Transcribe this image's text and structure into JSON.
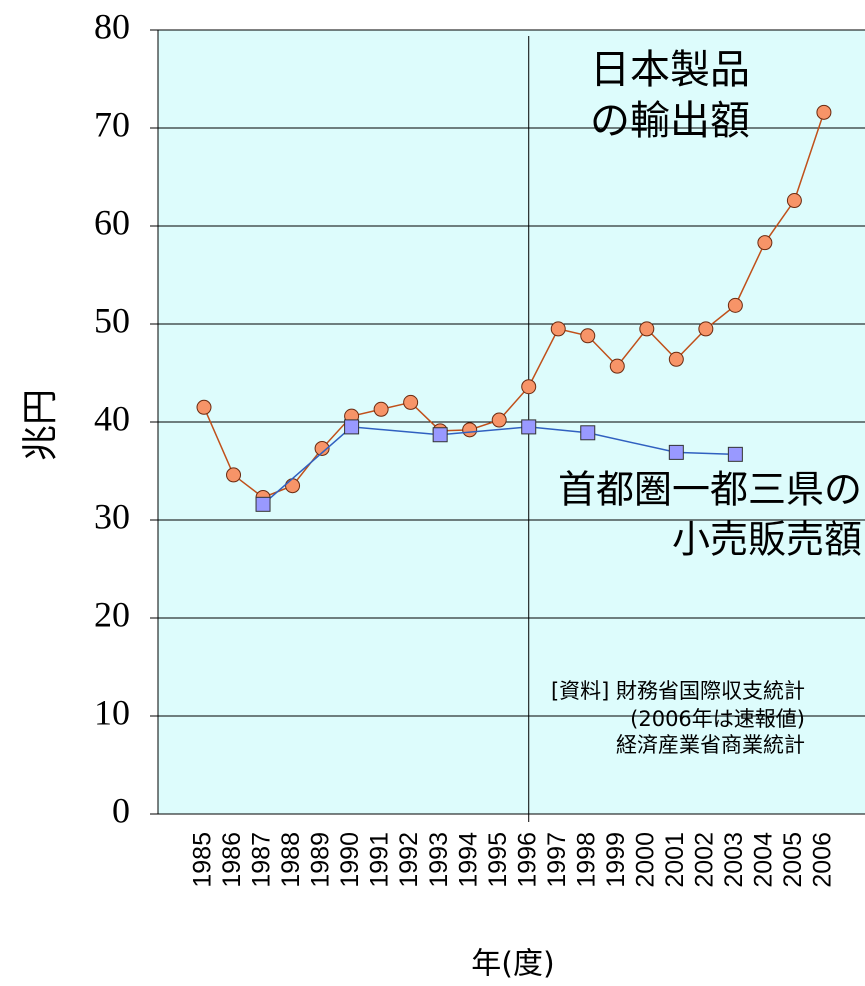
{
  "chart_data": {
    "type": "line",
    "y_label": "兆円",
    "x_label": "年(度)",
    "categories": [
      "1985",
      "1986",
      "1987",
      "1988",
      "1989",
      "1990",
      "1991",
      "1992",
      "1993",
      "1994",
      "1995",
      "1996",
      "1997",
      "1998",
      "1999",
      "2000",
      "2001",
      "2002",
      "2003",
      "2004",
      "2005",
      "2006"
    ],
    "series": [
      {
        "name": "日本製品の輸出額",
        "color": "#c0501a",
        "marker_color": "#f79468",
        "marker": "circle",
        "values": [
          41.5,
          34.6,
          32.3,
          33.5,
          37.3,
          40.6,
          41.3,
          42.0,
          39.1,
          39.2,
          40.2,
          43.6,
          49.5,
          48.8,
          45.7,
          49.5,
          46.4,
          49.5,
          51.9,
          58.3,
          62.6,
          71.6
        ]
      },
      {
        "name": "首都圏一都三県の小売販売額",
        "color": "#3060c0",
        "marker_color": "#9999ff",
        "marker": "square",
        "x": [
          "1987",
          "1990",
          "1993",
          "1996",
          "1998",
          "2001",
          "2003"
        ],
        "values": [
          31.6,
          39.5,
          38.7,
          39.5,
          38.9,
          36.9,
          36.7
        ]
      }
    ],
    "annotations": [
      "日本製品",
      "の輸出額",
      "首都圏一都三県の",
      "小売販売額",
      "[資料] 財務省国際収支統計",
      "(2006年は速報値)",
      "経済産業省商業統計"
    ],
    "ylim": [
      0,
      80
    ],
    "yticks": [
      0,
      10,
      20,
      30,
      40,
      50,
      60,
      70,
      80
    ],
    "grid": true
  }
}
